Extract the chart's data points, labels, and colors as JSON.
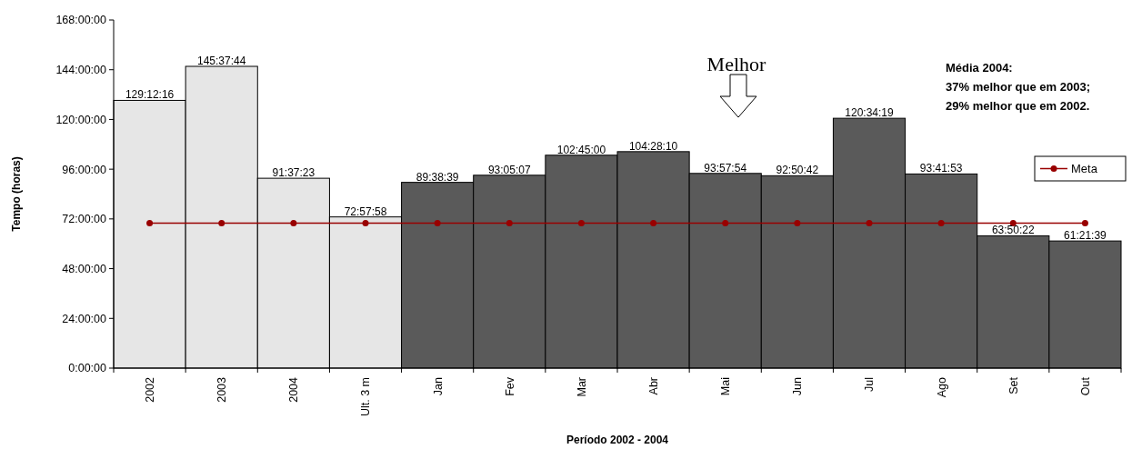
{
  "chart_data": {
    "type": "bar",
    "xlabel": "Período 2002 - 2004",
    "ylabel": "Tempo (horas)",
    "categories": [
      "2002",
      "2003",
      "2004",
      "Ult. 3 m",
      "Jan",
      "Fev",
      "Mar",
      "Abr",
      "Mai",
      "Jun",
      "Jul",
      "Ago",
      "Set",
      "Out"
    ],
    "series": [
      {
        "colors": [
          "#e6e6e6",
          "#e6e6e6",
          "#e6e6e6",
          "#e6e6e6",
          "#5a5a5a",
          "#5a5a5a",
          "#5a5a5a",
          "#5a5a5a",
          "#5a5a5a",
          "#5a5a5a",
          "#5a5a5a",
          "#5a5a5a",
          "#5a5a5a",
          "#5a5a5a"
        ],
        "values": [
          129.2044,
          145.6289,
          91.623,
          72.966,
          89.6442,
          93.0853,
          102.75,
          104.4694,
          93.965,
          92.845,
          120.572,
          93.698,
          63.8394,
          61.3608
        ],
        "value_labels": [
          "129:12:16",
          "145:37:44",
          "91:37:23",
          "72:57:58",
          "89:38:39",
          "93:05:07",
          "102:45:00",
          "104:28:10",
          "93:57:54",
          "92:50:42",
          "120:34:19",
          "93:41:53",
          "63:50:22",
          "61:21:39"
        ]
      },
      {
        "type": "line",
        "name": "Meta",
        "color": "#990000",
        "values": [
          70,
          70,
          70,
          70,
          70,
          70,
          70,
          70,
          70,
          70,
          70,
          70,
          70,
          70
        ]
      }
    ],
    "ylim": [
      0,
      168
    ],
    "yticks": [
      {
        "value": 0,
        "label": "0:00:00"
      },
      {
        "value": 24,
        "label": "24:00:00"
      },
      {
        "value": 48,
        "label": "48:00:00"
      },
      {
        "value": 72,
        "label": "72:00:00"
      },
      {
        "value": 96,
        "label": "96:00:00"
      },
      {
        "value": 120,
        "label": "120:00:00"
      },
      {
        "value": 144,
        "label": "144:00:00"
      },
      {
        "value": 168,
        "label": "168:00:00"
      }
    ],
    "marker": "circle",
    "legend": "right",
    "grid": false,
    "annotations": [
      "Melhor",
      "Média 2004:",
      "37% melhor que em 2003;",
      "29% melhor que em 2002."
    ]
  }
}
